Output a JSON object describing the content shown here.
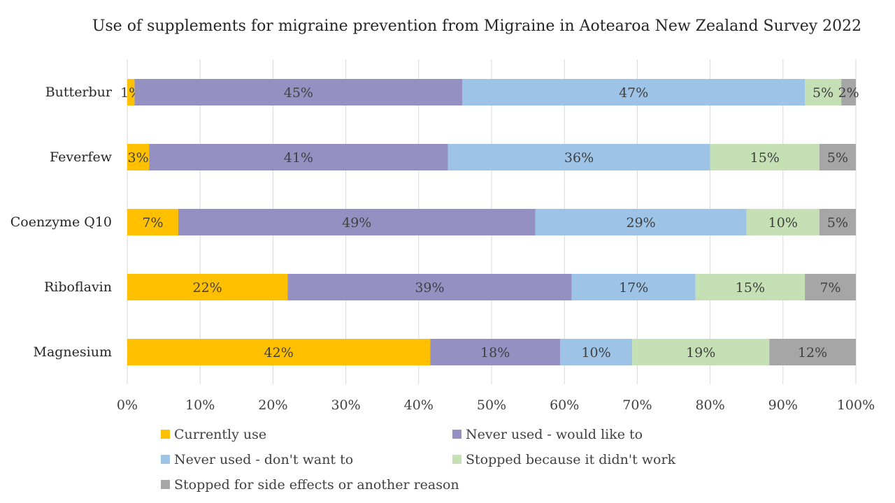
{
  "chart_data": {
    "type": "bar",
    "orientation": "horizontal",
    "stacked": "percent",
    "title": "Use of supplements for migraine prevention from Migraine in Aotearoa New Zealand Survey 2022",
    "categories": [
      "Butterbur",
      "Feverfew",
      "Coenzyme Q10",
      "Riboflavin",
      "Magnesium"
    ],
    "series": [
      {
        "name": "Currently use",
        "color": "#FFC000",
        "values": [
          1,
          3,
          7,
          22,
          42
        ]
      },
      {
        "name": "Never used - would like to",
        "color": "#9590C2",
        "values": [
          45,
          41,
          49,
          39,
          18
        ]
      },
      {
        "name": "Never used - don't want to",
        "color": "#9DC3E6",
        "values": [
          47,
          36,
          29,
          17,
          10
        ]
      },
      {
        "name": "Stopped because it didn't work",
        "color": "#C5E0B4",
        "values": [
          5,
          15,
          10,
          15,
          19
        ]
      },
      {
        "name": "Stopped for side effects or another reason",
        "color": "#A6A6A6",
        "values": [
          2,
          5,
          5,
          7,
          12
        ]
      }
    ],
    "xlim": [
      0,
      100
    ],
    "xticks": [
      "0%",
      "10%",
      "20%",
      "30%",
      "40%",
      "50%",
      "60%",
      "70%",
      "80%",
      "90%",
      "100%"
    ],
    "grid": "vertical",
    "legend_position": "bottom",
    "data_label_suffix": "%"
  }
}
